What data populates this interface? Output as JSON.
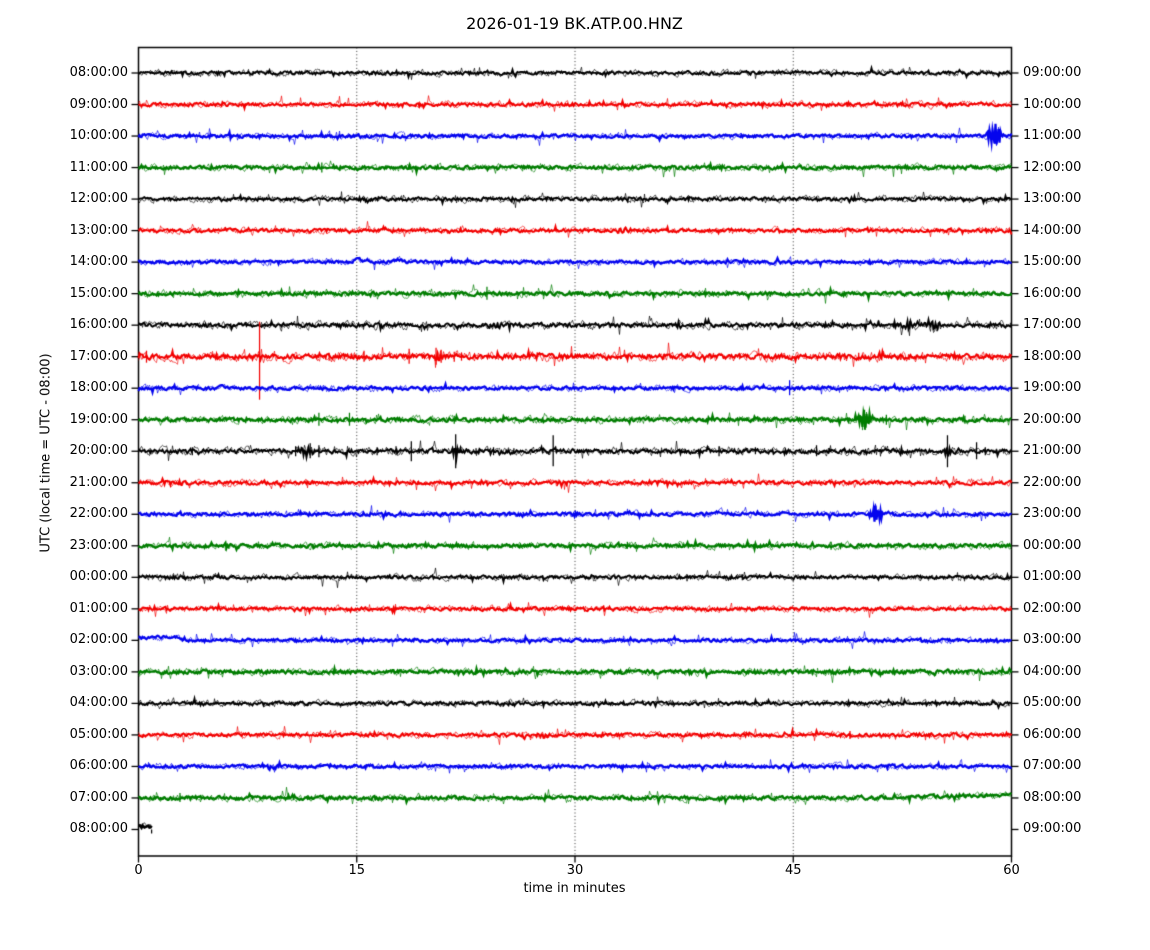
{
  "title": "2026-01-19 BK.ATP.00.HNZ",
  "x_axis_label": "time in minutes",
  "y_axis_label": "UTC (local time = UTC - 08:00)",
  "palette": {
    "black": "#000000",
    "red": "#f20000",
    "blue": "#0404ee",
    "green": "#007d00"
  },
  "chart_data": {
    "type": "line",
    "subtype": "helicorder-dayplot",
    "title": "2026-01-19 BK.ATP.00.HNZ",
    "xlabel": "time in minutes",
    "ylabel": "UTC (local time = UTC - 08:00)",
    "x_ticks": [
      "0",
      "15",
      "30",
      "45",
      "60"
    ],
    "x_tick_minutes": [
      0,
      15,
      30,
      45,
      60
    ],
    "grid_minutes": [
      15,
      30,
      45
    ],
    "x_range_minutes": [
      0,
      60
    ],
    "minutes_per_row": 60,
    "legend": "none",
    "rows": [
      {
        "utc": "08:00:00",
        "end": "09:00:00",
        "color": "black",
        "noise": 1.3,
        "events": []
      },
      {
        "utc": "09:00:00",
        "end": "10:00:00",
        "color": "red",
        "noise": 1.3,
        "events": []
      },
      {
        "utc": "10:00:00",
        "end": "11:00:00",
        "color": "blue",
        "noise": 1.2,
        "events": [
          {
            "t": "burst",
            "m": 58.55,
            "amp": 7,
            "w": 0.22,
            "f": 2.4
          },
          {
            "t": "burst",
            "m": 58.95,
            "amp": 13,
            "w": 0.28,
            "f": 2.4
          }
        ]
      },
      {
        "utc": "11:00:00",
        "end": "12:00:00",
        "color": "green",
        "noise": 1.35,
        "events": [
          {
            "t": "spike",
            "m": 12.6,
            "up": 5,
            "down": 5
          }
        ]
      },
      {
        "utc": "12:00:00",
        "end": "13:00:00",
        "color": "black",
        "noise": 1.3,
        "events": []
      },
      {
        "utc": "13:00:00",
        "end": "14:00:00",
        "color": "red",
        "noise": 1.3,
        "events": [
          {
            "t": "burst",
            "m": 33.2,
            "amp": 2.2,
            "w": 0.6,
            "f": 1.2
          }
        ]
      },
      {
        "utc": "14:00:00",
        "end": "15:00:00",
        "color": "blue",
        "noise": 1.2,
        "events": [
          {
            "t": "bump",
            "m": 15.05,
            "amp": 4,
            "w": 0.25
          },
          {
            "t": "bump",
            "m": 15.6,
            "amp": 1.5,
            "w": 0.5
          },
          {
            "t": "bump",
            "m": 17.9,
            "amp": 2.8,
            "w": 0.3
          }
        ]
      },
      {
        "utc": "15:00:00",
        "end": "16:00:00",
        "color": "green",
        "noise": 1.35,
        "events": [
          {
            "t": "spike",
            "m": 23.95,
            "up": 7,
            "down": 6
          },
          {
            "t": "spike",
            "m": 55.7,
            "up": 4,
            "down": 3
          }
        ]
      },
      {
        "utc": "16:00:00",
        "end": "17:00:00",
        "color": "black",
        "noise": 1.6,
        "events": [
          {
            "t": "burst",
            "m": 24.5,
            "amp": 2,
            "w": 0.4,
            "f": 1.8
          },
          {
            "t": "burst",
            "m": 37.2,
            "amp": 2.5,
            "w": 0.3,
            "f": 1.8
          },
          {
            "t": "burst",
            "m": 50.9,
            "amp": 2,
            "w": 0.25,
            "f": 1.8
          },
          {
            "t": "burst",
            "m": 52.9,
            "amp": 3.5,
            "w": 0.35,
            "f": 1.8
          },
          {
            "t": "spike",
            "m": 53.0,
            "up": 4,
            "down": 4
          },
          {
            "t": "burst",
            "m": 54.6,
            "amp": 3.5,
            "w": 0.5,
            "f": 1.8
          }
        ]
      },
      {
        "utc": "17:00:00",
        "end": "18:00:00",
        "color": "red",
        "noise": 1.9,
        "events": [
          {
            "t": "spike",
            "m": 0.55,
            "up": 6,
            "down": 6
          },
          {
            "t": "spike",
            "m": 8.32,
            "up": 35,
            "down": 43
          },
          {
            "t": "burst",
            "m": 8.32,
            "amp": 2.5,
            "w": 0.3,
            "f": 2.0
          },
          {
            "t": "spike",
            "m": 13.1,
            "up": 4,
            "down": 4
          },
          {
            "t": "spike",
            "m": 15.5,
            "up": 6,
            "down": 5
          },
          {
            "t": "spike",
            "m": 18.6,
            "up": 8,
            "down": 7
          },
          {
            "t": "spike",
            "m": 20.45,
            "up": 9,
            "down": 8
          },
          {
            "t": "spike",
            "m": 20.8,
            "up": 7,
            "down": 6
          },
          {
            "t": "burst",
            "m": 20.6,
            "amp": 3,
            "w": 0.4,
            "f": 2.0
          },
          {
            "t": "spike",
            "m": 21.7,
            "up": 5,
            "down": 5
          },
          {
            "t": "spike",
            "m": 22.2,
            "up": 4,
            "down": 4
          },
          {
            "t": "bump",
            "m": 27.5,
            "amp": 3,
            "w": 0.25
          },
          {
            "t": "spike",
            "m": 36.1,
            "up": 3,
            "down": 3
          },
          {
            "t": "spike",
            "m": 49.5,
            "up": 4,
            "down": 4
          },
          {
            "t": "spike",
            "m": 52.4,
            "up": 3,
            "down": 3
          }
        ]
      },
      {
        "utc": "18:00:00",
        "end": "19:00:00",
        "color": "blue",
        "noise": 1.25,
        "events": [
          {
            "t": "bump",
            "m": 5.8,
            "amp": 2,
            "w": 0.3
          },
          {
            "t": "spike",
            "m": 44.75,
            "up": 8,
            "down": 7
          }
        ]
      },
      {
        "utc": "19:00:00",
        "end": "20:00:00",
        "color": "green",
        "noise": 1.45,
        "events": [
          {
            "t": "spike",
            "m": 12.4,
            "up": 7,
            "down": 6
          },
          {
            "t": "spike",
            "m": 14.5,
            "up": 7,
            "down": 6
          },
          {
            "t": "spike",
            "m": 21.7,
            "up": 4,
            "down": 4
          },
          {
            "t": "burst",
            "m": 49.9,
            "amp": 9,
            "w": 0.4,
            "f": 2.2
          },
          {
            "t": "spike",
            "m": 49.9,
            "up": 10,
            "down": 10
          },
          {
            "t": "spike",
            "m": 51.4,
            "up": 5,
            "down": 5
          },
          {
            "t": "spike",
            "m": 53.9,
            "up": 3,
            "down": 3
          },
          {
            "t": "spike",
            "m": 56.8,
            "up": 4,
            "down": 4
          }
        ]
      },
      {
        "utc": "20:00:00",
        "end": "21:00:00",
        "color": "black",
        "noise": 1.6,
        "events": [
          {
            "t": "spike",
            "m": 0.8,
            "up": 3,
            "down": 3
          },
          {
            "t": "spike",
            "m": 3.7,
            "up": 4,
            "down": 4
          },
          {
            "t": "spike",
            "m": 10.8,
            "up": 5,
            "down": 5
          },
          {
            "t": "burst",
            "m": 11.5,
            "amp": 4,
            "w": 0.5,
            "f": 2.0
          },
          {
            "t": "spike",
            "m": 11.8,
            "up": 8,
            "down": 7
          },
          {
            "t": "spike",
            "m": 12.4,
            "up": 6,
            "down": 6
          },
          {
            "t": "spike",
            "m": 16.4,
            "up": 4,
            "down": 4
          },
          {
            "t": "spike",
            "m": 17.7,
            "up": 5,
            "down": 4
          },
          {
            "t": "spike",
            "m": 18.75,
            "up": 10,
            "down": 10
          },
          {
            "t": "spike",
            "m": 21.8,
            "up": 17,
            "down": 17
          },
          {
            "t": "burst",
            "m": 21.8,
            "amp": 6,
            "w": 0.3,
            "f": 2.2
          },
          {
            "t": "spike",
            "m": 23.2,
            "up": 3,
            "down": 3
          },
          {
            "t": "spike",
            "m": 24.4,
            "up": 4,
            "down": 4
          },
          {
            "t": "spike",
            "m": 25.8,
            "up": 3,
            "down": 3
          },
          {
            "t": "spike",
            "m": 28.5,
            "up": 16,
            "down": 15
          },
          {
            "t": "spike",
            "m": 39.9,
            "up": 5,
            "down": 5
          },
          {
            "t": "spike",
            "m": 42.4,
            "up": 4,
            "down": 3
          },
          {
            "t": "spike",
            "m": 46.6,
            "up": 6,
            "down": 5
          },
          {
            "t": "spike",
            "m": 55.6,
            "up": 16,
            "down": 16
          },
          {
            "t": "burst",
            "m": 55.6,
            "amp": 4,
            "w": 0.2,
            "f": 2.4
          },
          {
            "t": "spike",
            "m": 57.6,
            "up": 9,
            "down": 8
          },
          {
            "t": "spike",
            "m": 58.2,
            "up": 4,
            "down": 4
          }
        ]
      },
      {
        "utc": "21:00:00",
        "end": "22:00:00",
        "color": "red",
        "noise": 1.35,
        "events": [
          {
            "t": "burst",
            "m": 29.0,
            "amp": 2,
            "w": 0.4,
            "f": 1.5
          }
        ]
      },
      {
        "utc": "22:00:00",
        "end": "23:00:00",
        "color": "blue",
        "noise": 1.25,
        "events": [
          {
            "t": "bump",
            "m": 33.7,
            "amp": 2.5,
            "w": 0.35
          },
          {
            "t": "bump",
            "m": 40.0,
            "amp": 2.2,
            "w": 0.35
          },
          {
            "t": "bump",
            "m": 44.3,
            "amp": 1.8,
            "w": 0.3
          },
          {
            "t": "burst",
            "m": 50.7,
            "amp": 8.5,
            "w": 0.38,
            "f": 2.6
          }
        ]
      },
      {
        "utc": "23:00:00",
        "end": "00:00:00",
        "color": "green",
        "noise": 1.4,
        "events": [
          {
            "t": "spike",
            "m": 33.6,
            "up": 4,
            "down": 3
          },
          {
            "t": "spike",
            "m": 47.6,
            "up": 4,
            "down": 4
          }
        ]
      },
      {
        "utc": "00:00:00",
        "end": "01:00:00",
        "color": "black",
        "noise": 1.3,
        "events": [
          {
            "t": "spike",
            "m": 37.7,
            "up": 3,
            "down": 4
          },
          {
            "t": "spike",
            "m": 41.5,
            "up": 3,
            "down": 3
          }
        ]
      },
      {
        "utc": "01:00:00",
        "end": "02:00:00",
        "color": "red",
        "noise": 1.3,
        "events": []
      },
      {
        "utc": "02:00:00",
        "end": "03:00:00",
        "color": "blue",
        "noise": 1.2,
        "events": [
          {
            "t": "step",
            "from": 0,
            "to": 2.85,
            "dy": -3
          }
        ]
      },
      {
        "utc": "03:00:00",
        "end": "04:00:00",
        "color": "green",
        "noise": 1.45,
        "events": []
      },
      {
        "utc": "04:00:00",
        "end": "05:00:00",
        "color": "black",
        "noise": 1.3,
        "events": []
      },
      {
        "utc": "05:00:00",
        "end": "06:00:00",
        "color": "red",
        "noise": 1.3,
        "events": [
          {
            "t": "burst",
            "m": 27.8,
            "amp": 2.5,
            "w": 0.5,
            "f": 1.6
          },
          {
            "t": "spike",
            "m": 48.9,
            "up": 4,
            "down": 4
          }
        ]
      },
      {
        "utc": "06:00:00",
        "end": "07:00:00",
        "color": "blue",
        "noise": 1.2,
        "events": []
      },
      {
        "utc": "07:00:00",
        "end": "08:00:00",
        "color": "green",
        "noise": 1.4,
        "events": [
          {
            "t": "spike",
            "m": 2.85,
            "up": 5,
            "down": 4
          },
          {
            "t": "ramp",
            "from": 50,
            "to": 60,
            "dy": -3
          }
        ]
      },
      {
        "utc": "08:00:00",
        "end": "09:00:00",
        "color": "black",
        "noise": 1.5,
        "lw": 2.8,
        "extent": [
          0,
          0.95
        ],
        "events": [
          {
            "t": "step",
            "from": 0,
            "to": 0.95,
            "dy": -3.5
          },
          {
            "t": "spike",
            "m": 0.9,
            "up": 0,
            "down": 4
          }
        ]
      }
    ]
  }
}
